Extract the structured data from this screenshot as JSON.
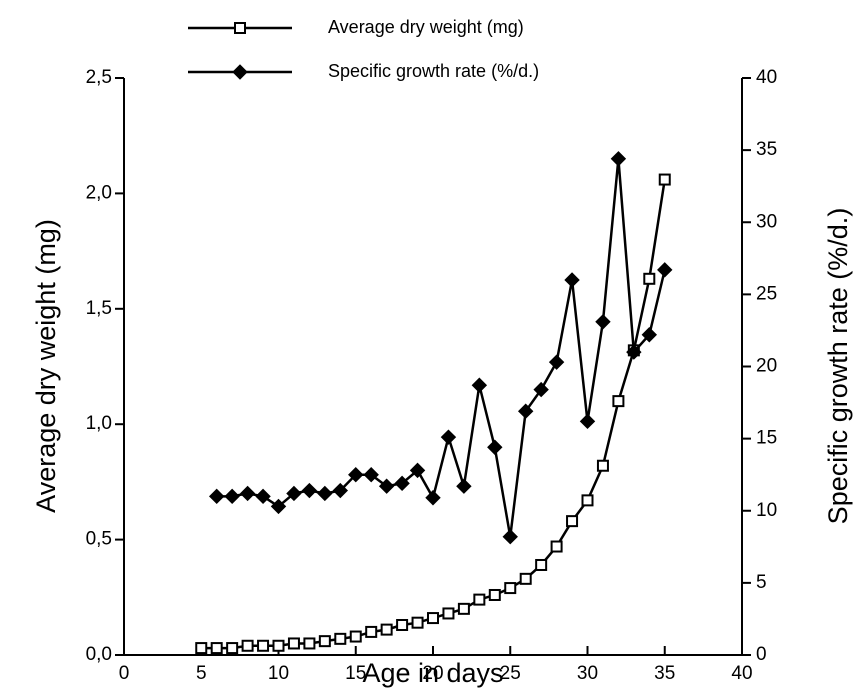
{
  "chart_data": {
    "type": "line",
    "x_label": "Age in days",
    "y_label": "Average dry weight (mg)",
    "y2_label": "Specific growth rate (%/d.)",
    "x": [
      5,
      6,
      7,
      8,
      9,
      10,
      11,
      12,
      13,
      14,
      15,
      16,
      17,
      18,
      19,
      20,
      21,
      22,
      23,
      24,
      25,
      26,
      27,
      28,
      29,
      30,
      31,
      32,
      33,
      34,
      35
    ],
    "series": [
      {
        "name": "Average dry weight (mg)",
        "color": "#000000",
        "marker": "square",
        "values": [
          0.03,
          0.03,
          0.03,
          0.04,
          0.04,
          0.04,
          0.05,
          0.05,
          0.06,
          0.07,
          0.08,
          0.1,
          0.11,
          0.13,
          0.14,
          0.16,
          0.18,
          0.2,
          0.24,
          0.26,
          0.29,
          0.33,
          0.39,
          0.47,
          0.58,
          0.67,
          0.82,
          1.1,
          1.32,
          1.63,
          2.06
        ]
      },
      {
        "name": "Specific growth rate (%/d.)",
        "color": "#000000",
        "marker": "diamond",
        "axis": "y2",
        "values": [
          null,
          11,
          11,
          11.2,
          11,
          10.3,
          11.2,
          11.4,
          11.2,
          11.4,
          12.5,
          12.5,
          11.7,
          11.9,
          12.8,
          10.9,
          15.1,
          11.7,
          18.7,
          14.4,
          8.2,
          16.9,
          18.4,
          20.3,
          26.0,
          16.2,
          23.1,
          34.4,
          21.0,
          22.2,
          26.7
        ]
      }
    ],
    "xlim": [
      0,
      40
    ],
    "xticks": [
      0,
      5,
      10,
      15,
      20,
      25,
      30,
      35,
      40
    ],
    "ylim": [
      0,
      2.5
    ],
    "yticks": [
      {
        "value": 0,
        "label": "0,0"
      },
      {
        "value": 0.5,
        "label": "0,5"
      },
      {
        "value": 1,
        "label": "1,0"
      },
      {
        "value": 1.5,
        "label": "1,5"
      },
      {
        "value": 2,
        "label": "2,0"
      },
      {
        "value": 2.5,
        "label": "2,5"
      }
    ],
    "y2lim": [
      0,
      40
    ],
    "y2ticks": [
      0,
      5,
      10,
      15,
      20,
      25,
      30,
      35,
      40
    ]
  }
}
